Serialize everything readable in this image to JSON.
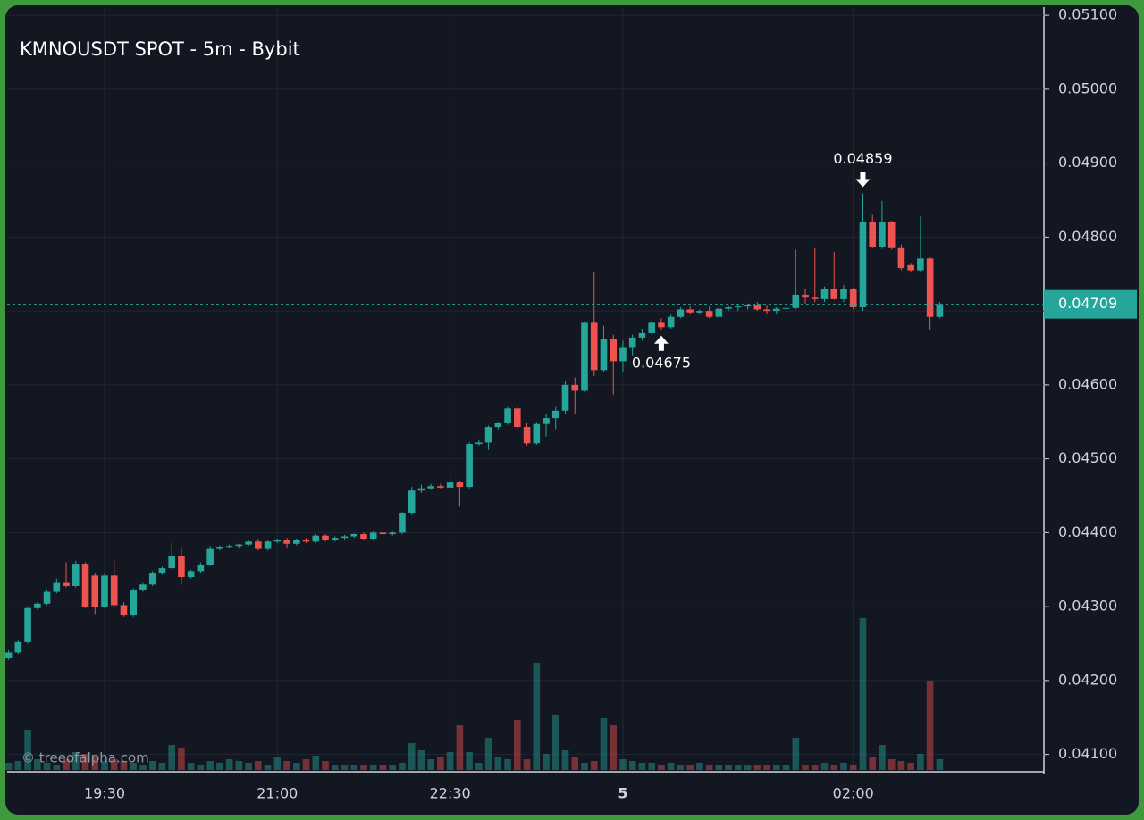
{
  "chart_data": {
    "type": "candlestick",
    "title": "KMNOUSDT SPOT - 5m - Bybit",
    "watermark": "© treeofalpha.com",
    "up_color": "#26a69a",
    "down_color": "#ef5350",
    "categories": [
      null,
      null,
      null,
      null,
      null,
      null,
      null,
      null,
      null,
      null,
      "19:30",
      null,
      null,
      null,
      null,
      null,
      null,
      null,
      null,
      null,
      null,
      null,
      null,
      null,
      null,
      null,
      null,
      null,
      "21:00",
      null,
      null,
      null,
      null,
      null,
      null,
      null,
      null,
      null,
      null,
      null,
      null,
      null,
      null,
      null,
      null,
      null,
      "22:30",
      null,
      null,
      null,
      null,
      null,
      null,
      null,
      null,
      null,
      null,
      null,
      null,
      null,
      null,
      null,
      null,
      null,
      "5",
      null,
      null,
      null,
      null,
      null,
      null,
      null,
      null,
      null,
      null,
      null,
      null,
      null,
      null,
      null,
      null,
      null,
      null,
      null,
      null,
      null,
      null,
      null,
      "02:00",
      null,
      null,
      null,
      null,
      null,
      null,
      null,
      null,
      null
    ],
    "open": [
      0.0423,
      0.04238,
      0.04252,
      0.04298,
      0.04304,
      0.0432,
      0.04332,
      0.04328,
      0.04358,
      0.04342,
      0.043,
      0.04342,
      0.04302,
      0.04288,
      0.04323,
      0.0433,
      0.04345,
      0.04352,
      0.04368,
      0.0434,
      0.04348,
      0.04357,
      0.04378,
      0.04381,
      0.04382,
      0.04384,
      0.04388,
      0.04378,
      0.04388,
      0.0439,
      0.04385,
      0.0439,
      0.04388,
      0.04396,
      0.0439,
      0.04393,
      0.04395,
      0.04398,
      0.04392,
      0.044,
      0.04398,
      0.044,
      0.04427,
      0.04457,
      0.0446,
      0.04463,
      0.04461,
      0.04468,
      0.04462,
      0.0452,
      0.04522,
      0.04543,
      0.04548,
      0.04568,
      0.04543,
      0.04521,
      0.04547,
      0.04555,
      0.04565,
      0.046,
      0.04592,
      0.04684,
      0.0462,
      0.04662,
      0.04632,
      0.0465,
      0.04664,
      0.0467,
      0.04684,
      0.04678,
      0.04692,
      0.04702,
      0.04698,
      0.047,
      0.04692,
      0.04703,
      0.04705,
      0.04706,
      0.04708,
      0.04702,
      0.047,
      0.04703,
      0.04704,
      0.04722,
      0.04718,
      0.04716,
      0.0473,
      0.04716,
      0.0473,
      0.04705,
      0.04821,
      0.04786,
      0.0482,
      0.04785,
      0.04762,
      0.04755,
      0.04771,
      0.04692
    ],
    "high": [
      0.04241,
      0.04254,
      0.043,
      0.04306,
      0.04322,
      0.04338,
      0.0436,
      0.04362,
      0.0436,
      0.04345,
      0.04345,
      0.04362,
      0.04306,
      0.04325,
      0.04332,
      0.04348,
      0.04354,
      0.04386,
      0.0438,
      0.0435,
      0.0436,
      0.04382,
      0.04383,
      0.04384,
      0.04385,
      0.0439,
      0.04392,
      0.0439,
      0.04392,
      0.04393,
      0.04392,
      0.04393,
      0.04398,
      0.04398,
      0.04395,
      0.04397,
      0.04399,
      0.044,
      0.04402,
      0.04402,
      0.04402,
      0.04428,
      0.04462,
      0.04465,
      0.04466,
      0.04466,
      0.04475,
      0.0447,
      0.04522,
      0.04525,
      0.04545,
      0.0455,
      0.0457,
      0.0457,
      0.04548,
      0.0455,
      0.0456,
      0.0457,
      0.04605,
      0.0461,
      0.04686,
      0.04752,
      0.0468,
      0.04668,
      0.0466,
      0.04668,
      0.04676,
      0.04686,
      0.0469,
      0.04695,
      0.04705,
      0.04706,
      0.04702,
      0.04706,
      0.04705,
      0.04707,
      0.04708,
      0.0471,
      0.04712,
      0.04708,
      0.04705,
      0.04706,
      0.04783,
      0.0473,
      0.04785,
      0.04733,
      0.0478,
      0.04735,
      0.04732,
      0.04859,
      0.0483,
      0.04849,
      0.04822,
      0.0479,
      0.04765,
      0.04828,
      0.04772,
      0.04712
    ],
    "low": [
      0.04228,
      0.04236,
      0.0425,
      0.04296,
      0.04302,
      0.04318,
      0.04326,
      0.04326,
      0.04298,
      0.0429,
      0.04298,
      0.04298,
      0.04286,
      0.04286,
      0.0432,
      0.04328,
      0.04343,
      0.0435,
      0.0433,
      0.04338,
      0.04346,
      0.04355,
      0.04376,
      0.04379,
      0.0438,
      0.04382,
      0.04376,
      0.04376,
      0.04386,
      0.0438,
      0.04383,
      0.04386,
      0.04386,
      0.04388,
      0.04388,
      0.04391,
      0.04393,
      0.0439,
      0.0439,
      0.04396,
      0.04396,
      0.04398,
      0.04425,
      0.04454,
      0.04458,
      0.0446,
      0.04459,
      0.04435,
      0.0446,
      0.04518,
      0.04512,
      0.0454,
      0.04546,
      0.0454,
      0.04518,
      0.04519,
      0.0453,
      0.0454,
      0.0456,
      0.0456,
      0.0459,
      0.04612,
      0.04618,
      0.04587,
      0.04618,
      0.0464,
      0.0466,
      0.04668,
      0.04675,
      0.04676,
      0.0469,
      0.04695,
      0.04695,
      0.0469,
      0.0469,
      0.047,
      0.047,
      0.04702,
      0.047,
      0.04696,
      0.04695,
      0.047,
      0.04702,
      0.0471,
      0.04712,
      0.04712,
      0.04715,
      0.04712,
      0.04702,
      0.047,
      0.04785,
      0.04784,
      0.04783,
      0.04755,
      0.04752,
      0.04752,
      0.04675,
      0.0469
    ],
    "close": [
      0.04238,
      0.04252,
      0.04298,
      0.04304,
      0.0432,
      0.04332,
      0.04328,
      0.04358,
      0.043,
      0.043,
      0.04342,
      0.04302,
      0.04288,
      0.04323,
      0.0433,
      0.04345,
      0.04352,
      0.04368,
      0.0434,
      0.04348,
      0.04357,
      0.04378,
      0.04381,
      0.04382,
      0.04384,
      0.04388,
      0.04378,
      0.04388,
      0.0439,
      0.04385,
      0.0439,
      0.04388,
      0.04396,
      0.0439,
      0.04393,
      0.04395,
      0.04398,
      0.04392,
      0.044,
      0.04398,
      0.044,
      0.04427,
      0.04457,
      0.0446,
      0.04463,
      0.04461,
      0.04468,
      0.04462,
      0.0452,
      0.04522,
      0.04543,
      0.04548,
      0.04568,
      0.04543,
      0.04521,
      0.04547,
      0.04555,
      0.04565,
      0.046,
      0.04592,
      0.04684,
      0.0462,
      0.04662,
      0.04632,
      0.0465,
      0.04664,
      0.0467,
      0.04684,
      0.04678,
      0.04692,
      0.04702,
      0.04698,
      0.047,
      0.04692,
      0.04703,
      0.04705,
      0.04706,
      0.04708,
      0.04702,
      0.047,
      0.04703,
      0.04704,
      0.04722,
      0.04718,
      0.04716,
      0.0473,
      0.04716,
      0.0473,
      0.04705,
      0.04821,
      0.04786,
      0.0482,
      0.04785,
      0.04758,
      0.04755,
      0.04771,
      0.04692,
      0.04709
    ],
    "volume": [
      8,
      10,
      45,
      12,
      8,
      6,
      12,
      20,
      18,
      14,
      10,
      12,
      10,
      8,
      6,
      10,
      8,
      28,
      25,
      8,
      6,
      10,
      8,
      12,
      10,
      8,
      10,
      6,
      14,
      10,
      8,
      12,
      16,
      10,
      6,
      6,
      6,
      6,
      6,
      6,
      6,
      8,
      30,
      22,
      12,
      14,
      20,
      50,
      20,
      8,
      36,
      14,
      12,
      56,
      12,
      120,
      18,
      62,
      22,
      14,
      8,
      10,
      58,
      50,
      12,
      10,
      8,
      8,
      6,
      8,
      6,
      6,
      8,
      6,
      6,
      6,
      6,
      6,
      6,
      6,
      6,
      6,
      36,
      6,
      6,
      8,
      6,
      8,
      6,
      170,
      14,
      28,
      12,
      10,
      8,
      18,
      100,
      12
    ],
    "ylim": [
      0.04079,
      0.05111
    ],
    "yticks": [
      {
        "value": 0.041,
        "label": "0.04100"
      },
      {
        "value": 0.042,
        "label": "0.04200"
      },
      {
        "value": 0.043,
        "label": "0.04300"
      },
      {
        "value": 0.044,
        "label": "0.04400"
      },
      {
        "value": 0.045,
        "label": "0.04500"
      },
      {
        "value": 0.046,
        "label": "0.04600"
      },
      {
        "value": 0.047,
        "label": "0.04700"
      },
      {
        "value": 0.048,
        "label": "0.04800"
      },
      {
        "value": 0.049,
        "label": "0.04900"
      },
      {
        "value": 0.05,
        "label": "0.05000"
      },
      {
        "value": 0.051,
        "label": "0.05100"
      }
    ],
    "grid": true,
    "high_marker": {
      "value": 0.04859,
      "label": "0.04859"
    },
    "low_marker": {
      "value": 0.04675,
      "label": "0.04675"
    },
    "last_price": {
      "value": 0.04709,
      "label": "0.04709"
    }
  }
}
